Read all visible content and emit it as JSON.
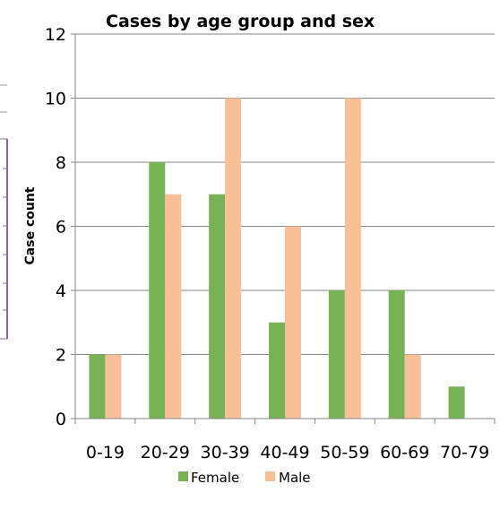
{
  "colors": {
    "female": "#77b255",
    "male": "#f9c097",
    "gridline": "#868686",
    "axis": "#868686",
    "side_panel": "#8a6aa8"
  },
  "chart_data": {
    "type": "bar",
    "title": "Cases by age group and sex",
    "ylabel": "Case count",
    "xlabel": "",
    "categories": [
      "0-19",
      "20-29",
      "30-39",
      "40-49",
      "50-59",
      "60-69",
      "70-79"
    ],
    "series": [
      {
        "name": "Female",
        "values": [
          2,
          8,
          7,
          3,
          4,
          4,
          1
        ]
      },
      {
        "name": "Male",
        "values": [
          2,
          7,
          10,
          6,
          10,
          2,
          0
        ]
      }
    ],
    "ylim": [
      0,
      12
    ],
    "yticks": [
      0,
      2,
      4,
      6,
      8,
      10,
      12
    ],
    "grid": true,
    "legend": "bottom"
  }
}
